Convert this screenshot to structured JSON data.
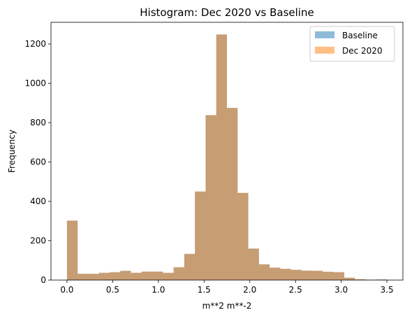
{
  "colors": {
    "baseline": "#1f77b4",
    "dec2020": "#ff7f0e",
    "overlap": "#c69c6e"
  },
  "chart_data": {
    "type": "bar",
    "subtype": "histogram-overlay",
    "title": "Histogram: Dec 2020 vs Baseline",
    "xlabel": "m**2 m**-2",
    "ylabel": "Frequency",
    "xlim": [
      -0.175,
      3.675
    ],
    "ylim": [
      0,
      1310
    ],
    "xticks": [
      0.0,
      0.5,
      1.0,
      1.5,
      2.0,
      2.5,
      3.0,
      3.5
    ],
    "xtick_labels": [
      "0.0",
      "0.5",
      "1.0",
      "1.5",
      "2.0",
      "2.5",
      "3.0",
      "3.5"
    ],
    "yticks": [
      0,
      200,
      400,
      600,
      800,
      1000,
      1200
    ],
    "ytick_labels": [
      "0",
      "200",
      "400",
      "600",
      "800",
      "1000",
      "1200"
    ],
    "legend": {
      "position": "top-right",
      "entries": [
        "Baseline",
        "Dec 2020"
      ]
    },
    "grid": false,
    "bin_width": 0.1167,
    "bin_starts": [
      0.0,
      0.1167,
      0.2333,
      0.35,
      0.4667,
      0.5833,
      0.7,
      0.8167,
      0.9333,
      1.05,
      1.1667,
      1.2833,
      1.4,
      1.5167,
      1.6333,
      1.75,
      1.8667,
      1.9833,
      2.1,
      2.2167,
      2.3333,
      2.45,
      2.5667,
      2.6833,
      2.8,
      2.9167,
      3.0333,
      3.15,
      3.2667,
      3.3833
    ],
    "series": [
      {
        "name": "Baseline",
        "values": [
          302,
          32,
          32,
          37,
          40,
          47,
          37,
          43,
          43,
          37,
          65,
          133,
          450,
          838,
          1248,
          875,
          443,
          160,
          80,
          63,
          57,
          52,
          48,
          47,
          42,
          40,
          12,
          4,
          2,
          3
        ]
      },
      {
        "name": "Dec 2020",
        "values": [
          302,
          32,
          32,
          37,
          40,
          47,
          37,
          43,
          43,
          37,
          65,
          133,
          450,
          838,
          1248,
          875,
          443,
          160,
          80,
          63,
          57,
          52,
          48,
          47,
          42,
          40,
          12,
          4,
          2,
          3
        ]
      }
    ]
  }
}
